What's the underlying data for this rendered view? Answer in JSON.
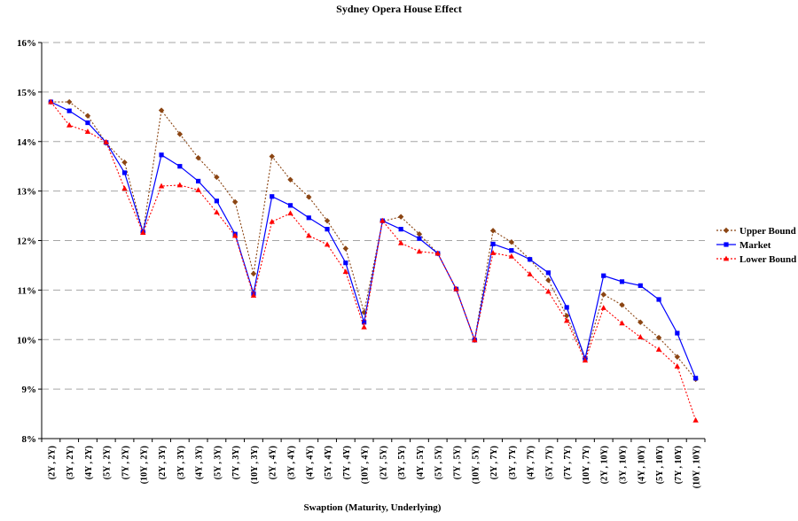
{
  "chart_data": {
    "type": "line",
    "title": "Sydney Opera House Effect",
    "xlabel": "Swaption (Maturity, Underlying)",
    "ylabel": "",
    "ylim": [
      8,
      16
    ],
    "yticks": [
      "8%",
      "9%",
      "10%",
      "11%",
      "12%",
      "13%",
      "14%",
      "15%",
      "16%"
    ],
    "grid": "horizontal dashed",
    "legend": "right",
    "categories": [
      "(2Y , 2Y)",
      "(3Y , 2Y)",
      "(4Y , 2Y)",
      "(5Y , 2Y)",
      "(7Y , 2Y)",
      "(10Y , 2Y)",
      "(2Y , 3Y)",
      "(3Y , 3Y)",
      "(4Y , 3Y)",
      "(5Y , 3Y)",
      "(7Y , 3Y)",
      "(10Y , 3Y)",
      "(2Y , 4Y)",
      "(3Y , 4Y)",
      "(4Y , 4Y)",
      "(5Y , 4Y)",
      "(7Y , 4Y)",
      "(10Y , 4Y)",
      "(2Y , 5Y)",
      "(3Y , 5Y)",
      "(4Y , 5Y)",
      "(5Y , 5Y)",
      "(7Y , 5Y)",
      "(10Y , 5Y)",
      "(2Y , 7Y)",
      "(3Y , 7Y)",
      "(4Y , 7Y)",
      "(5Y , 7Y)",
      "(7Y , 7Y)",
      "(10Y , 7Y)",
      "(2Y , 10Y)",
      "(3Y , 10Y)",
      "(4Y , 10Y)",
      "(5Y , 10Y)",
      "(7Y , 10Y)",
      "(10Y , 10Y)"
    ],
    "series": [
      {
        "name": "Upper Bound",
        "color": "#8B4513",
        "marker": "diamond",
        "line": "dotted",
        "values": [
          14.8,
          14.8,
          14.52,
          13.97,
          13.58,
          12.17,
          14.63,
          14.15,
          13.67,
          13.28,
          12.78,
          11.33,
          13.7,
          13.23,
          12.88,
          12.4,
          11.84,
          10.55,
          12.39,
          12.48,
          12.13,
          11.74,
          11.02,
          9.99,
          12.2,
          11.97,
          11.62,
          11.2,
          10.48,
          9.62,
          10.91,
          10.7,
          10.35,
          10.04,
          9.65,
          9.2
        ]
      },
      {
        "name": "Market",
        "color": "#0000FF",
        "marker": "square",
        "line": "solid",
        "values": [
          14.8,
          14.62,
          14.38,
          13.98,
          13.37,
          12.17,
          13.73,
          13.5,
          13.2,
          12.8,
          12.13,
          10.93,
          12.89,
          12.71,
          12.46,
          12.23,
          11.55,
          10.35,
          12.4,
          12.23,
          12.04,
          11.74,
          11.02,
          9.99,
          11.93,
          11.8,
          11.62,
          11.35,
          10.65,
          9.62,
          11.29,
          11.17,
          11.09,
          10.81,
          10.13,
          9.22
        ]
      },
      {
        "name": "Lower Bound",
        "color": "#FF0000",
        "marker": "triangle",
        "line": "dotted",
        "values": [
          14.8,
          14.33,
          14.2,
          13.99,
          13.05,
          12.16,
          13.1,
          13.12,
          13.02,
          12.57,
          12.1,
          10.89,
          12.38,
          12.55,
          12.1,
          11.92,
          11.37,
          10.25,
          12.4,
          11.95,
          11.78,
          11.74,
          11.02,
          9.99,
          11.75,
          11.68,
          11.32,
          10.97,
          10.38,
          9.58,
          10.64,
          10.33,
          10.05,
          9.8,
          9.46,
          8.37
        ]
      }
    ]
  }
}
